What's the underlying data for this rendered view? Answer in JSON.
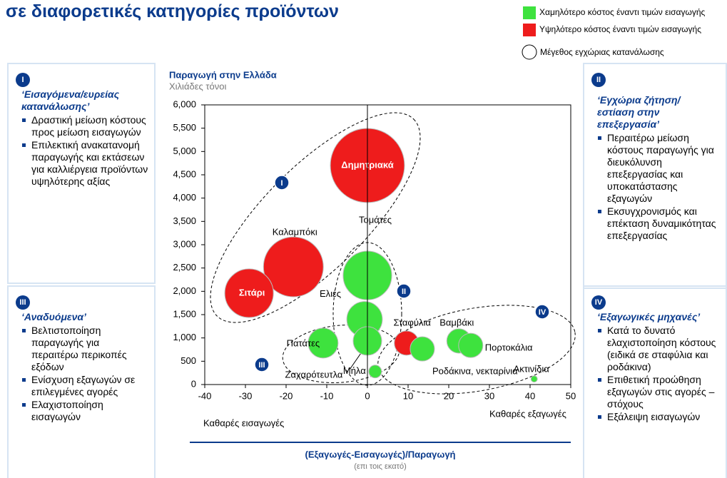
{
  "header": {
    "title": "σε διαφορετικές κατηγορίες προϊόντων"
  },
  "chart_data": {
    "type": "bubble",
    "y_title": "Παραγωγή στην Ελλάδα",
    "y_subtitle": "Χιλιάδες τόνοι",
    "x_title": "(Εξαγωγές-Εισαγωγές)/Παραγωγή",
    "x_subtitle": "(επι τοις εκατό)",
    "x_left_note": "Καθαρές εισαγωγές",
    "x_right_note": "Καθαρές εξαγωγές",
    "size_legend": "Μέγεθος εγχώριας κατανάλωσης",
    "groups": [
      "I",
      "II",
      "III",
      "IV"
    ],
    "xlim": [
      -40,
      50
    ],
    "xticks": [
      -40,
      -30,
      -20,
      -10,
      0,
      10,
      20,
      30,
      40,
      50
    ],
    "ylim": [
      0,
      6000
    ],
    "yticks": [
      0,
      500,
      {
        "value": 1000,
        "label": "1,000"
      },
      {
        "value": 1500,
        "label": "1,500"
      },
      {
        "value": 2000,
        "label": "2,000"
      },
      {
        "value": 2500,
        "label": "2,500"
      },
      {
        "value": 3000,
        "label": "3,000"
      },
      {
        "value": 3500,
        "label": "3,500"
      },
      {
        "value": 4000,
        "label": "4,000"
      },
      {
        "value": 4500,
        "label": "4,500"
      },
      {
        "value": 5000,
        "label": "5,000"
      },
      {
        "value": 5500,
        "label": "5,500"
      },
      {
        "value": 6000,
        "label": "6,000"
      }
    ],
    "series": [
      {
        "name": "Υψηλότερο κόστος έναντι τιμών εισαγωγής",
        "color": "#ee1c1c",
        "labels": [
          "Δημητριακά",
          "Καλαμπόκι",
          "Σιτάρι",
          "Σταφύλια"
        ],
        "x": [
          0,
          -18.2,
          -29.1,
          9.6
        ],
        "y": [
          4700,
          2525,
          1960,
          890
        ],
        "size": [
          270,
          176,
          116,
          29
        ]
      },
      {
        "name": "Χαμηλότερο κόστος έναντι τιμών εισαγωγής",
        "color": "#3ee23e",
        "labels": [
          "Τομάτες",
          "Ελιές",
          "Πατάτες",
          "Ζαχαρότευτλα",
          "Μήλα",
          "Ροδάκινα, νεκταρίνια",
          "Βαμβάκι",
          "Πορτοκάλια",
          "Ακτινίδια"
        ],
        "x": [
          0,
          -0.7,
          -10.9,
          0,
          1.9,
          13.5,
          22.5,
          25.4,
          41
        ],
        "y": [
          2340,
          1400,
          890,
          935,
          280,
          765,
          935,
          840,
          120
        ],
        "size": [
          116,
          62,
          44,
          40,
          8,
          29,
          29,
          29,
          2
        ]
      }
    ]
  },
  "panels": [
    {
      "numeral": "I",
      "title": "‘Εισαγόμενα/ευρείας κατανάλωσης’",
      "bullets": [
        "Δραστική μείωση κόστους προς μείωση εισαγωγών",
        "Επιλεκτική ανακατανομή παραγωγής και εκτάσεων για καλλιέργεια προϊόντων υψηλότερης αξίας"
      ]
    },
    {
      "numeral": "II",
      "title": "‘Εγχώρια ζήτηση/ εστίαση στην επεξεργασία’",
      "bullets": [
        "Περαιτέρω μείωση κόστους παραγωγής για διευκόλυνση επεξεργασίας και υποκατάστασης εξαγωγών",
        "Εκσυγχρονισμός και επέκταση δυναμικότητας επεξεργασίας"
      ]
    },
    {
      "numeral": "III",
      "title": "‘Αναδυόμενα’",
      "bullets": [
        "Βελτιστοποίηση παραγωγής για περαιτέρω περικοπές εξόδων",
        "Ενίσχυση εξαγωγών σε επιλεγμένες αγορές",
        "Ελαχιστοποίηση εισαγωγών"
      ]
    },
    {
      "numeral": "IV",
      "title": "‘Εξαγωγικές μηχανές’",
      "bullets": [
        "Κατά το δυνατό ελαχιστοποίηση κόστους (ειδικά σε σταφύλια και ροδάκινα)",
        "Επιθετική προώθηση εξαγωγών στις αγορές –στόχους",
        "Εξάλειψη εισαγωγών"
      ]
    }
  ]
}
